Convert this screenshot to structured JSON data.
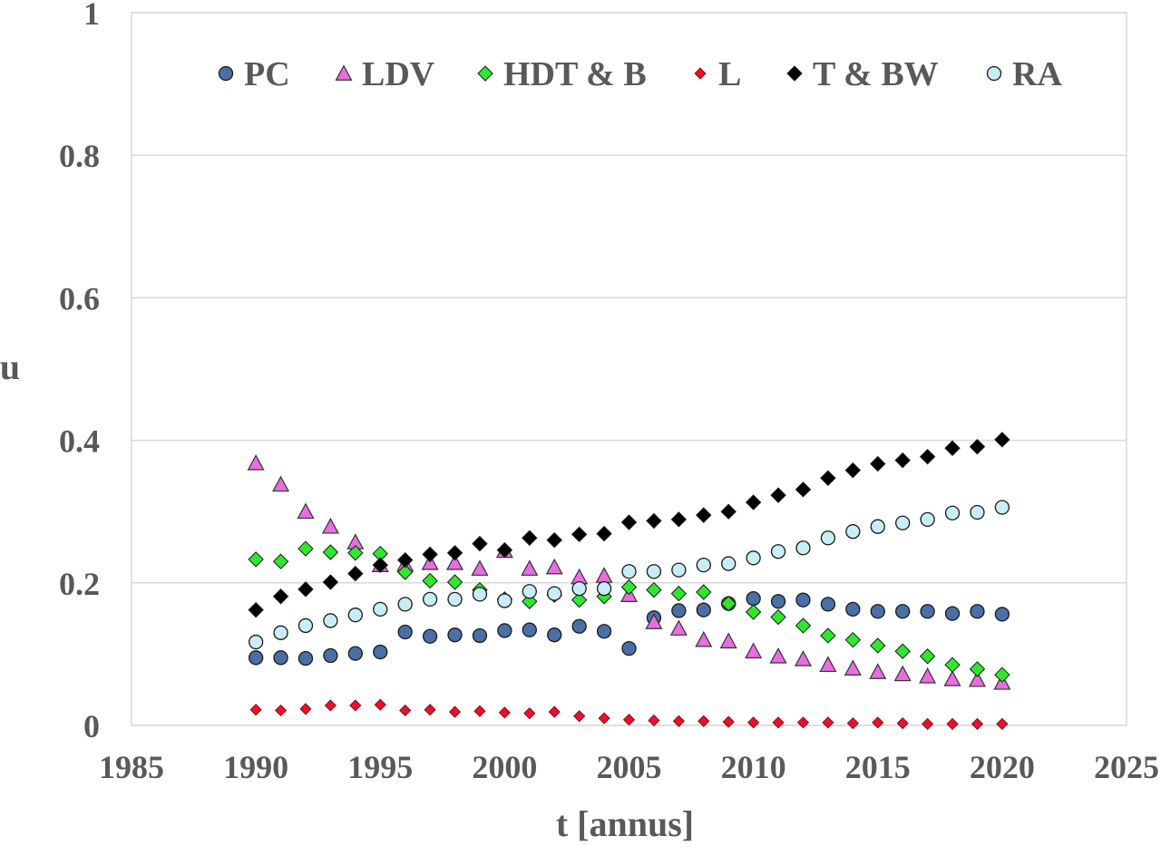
{
  "chart_data": {
    "type": "scatter",
    "title": "",
    "xlabel": "t [annus]",
    "ylabel": "u",
    "xlim": [
      1985,
      2025
    ],
    "ylim": [
      0,
      1
    ],
    "x_ticks": [
      "1985",
      "1990",
      "1995",
      "2000",
      "2005",
      "2010",
      "2015",
      "2020",
      "2025"
    ],
    "y_ticks": [
      "0",
      "0.2",
      "0.4",
      "0.6",
      "0.8",
      "1"
    ],
    "grid": "horizontal",
    "legend_position": "top",
    "x": [
      1990,
      1991,
      1992,
      1993,
      1994,
      1995,
      1996,
      1997,
      1998,
      1999,
      2000,
      2001,
      2002,
      2003,
      2004,
      2005,
      2006,
      2007,
      2008,
      2009,
      2010,
      2011,
      2012,
      2013,
      2014,
      2015,
      2016,
      2017,
      2018,
      2019,
      2020
    ],
    "series": [
      {
        "name": "PC",
        "marker": "circle",
        "color": "#4a6fa5",
        "values": [
          0.095,
          0.095,
          0.094,
          0.098,
          0.101,
          0.103,
          0.131,
          0.125,
          0.127,
          0.126,
          0.133,
          0.134,
          0.127,
          0.139,
          0.132,
          0.108,
          0.151,
          0.161,
          0.162,
          0.171,
          0.178,
          0.174,
          0.176,
          0.17,
          0.163,
          0.16,
          0.16,
          0.16,
          0.157,
          0.16,
          0.156
        ]
      },
      {
        "name": "LDV",
        "marker": "triangle",
        "color": "#e86de0",
        "values": [
          0.368,
          0.338,
          0.3,
          0.279,
          0.257,
          0.225,
          0.226,
          0.228,
          0.228,
          0.22,
          0.245,
          0.22,
          0.222,
          0.208,
          0.21,
          0.183,
          0.145,
          0.136,
          0.12,
          0.118,
          0.104,
          0.097,
          0.093,
          0.085,
          0.08,
          0.075,
          0.072,
          0.069,
          0.065,
          0.064,
          0.06
        ]
      },
      {
        "name": "HDT & B",
        "marker": "diamond",
        "color": "#2ee82e",
        "values": [
          0.233,
          0.23,
          0.248,
          0.243,
          0.242,
          0.241,
          0.215,
          0.203,
          0.201,
          0.19,
          0.177,
          0.174,
          0.183,
          0.176,
          0.181,
          0.194,
          0.19,
          0.185,
          0.187,
          0.171,
          0.159,
          0.152,
          0.14,
          0.126,
          0.12,
          0.112,
          0.104,
          0.097,
          0.085,
          0.079,
          0.071
        ]
      },
      {
        "name": "L",
        "marker": "diamond-small",
        "color": "#e8102a",
        "values": [
          0.022,
          0.021,
          0.023,
          0.028,
          0.028,
          0.029,
          0.021,
          0.022,
          0.019,
          0.02,
          0.018,
          0.017,
          0.019,
          0.013,
          0.01,
          0.008,
          0.007,
          0.006,
          0.006,
          0.005,
          0.004,
          0.004,
          0.004,
          0.004,
          0.003,
          0.004,
          0.003,
          0.002,
          0.002,
          0.002,
          0.002
        ]
      },
      {
        "name": "T & BW",
        "marker": "diamond",
        "color": "#000000",
        "values": [
          0.162,
          0.181,
          0.191,
          0.201,
          0.213,
          0.225,
          0.232,
          0.24,
          0.242,
          0.255,
          0.246,
          0.263,
          0.26,
          0.268,
          0.269,
          0.285,
          0.287,
          0.289,
          0.295,
          0.3,
          0.313,
          0.323,
          0.331,
          0.347,
          0.358,
          0.367,
          0.372,
          0.377,
          0.389,
          0.391,
          0.401
        ]
      },
      {
        "name": "RA",
        "marker": "circle",
        "color": "#c8edf5",
        "values": [
          0.117,
          0.13,
          0.14,
          0.147,
          0.155,
          0.163,
          0.17,
          0.177,
          0.177,
          0.184,
          0.175,
          0.188,
          0.185,
          0.192,
          0.192,
          0.216,
          0.216,
          0.218,
          0.225,
          0.227,
          0.235,
          0.244,
          0.249,
          0.263,
          0.272,
          0.279,
          0.284,
          0.289,
          0.298,
          0.299,
          0.306
        ]
      }
    ]
  }
}
